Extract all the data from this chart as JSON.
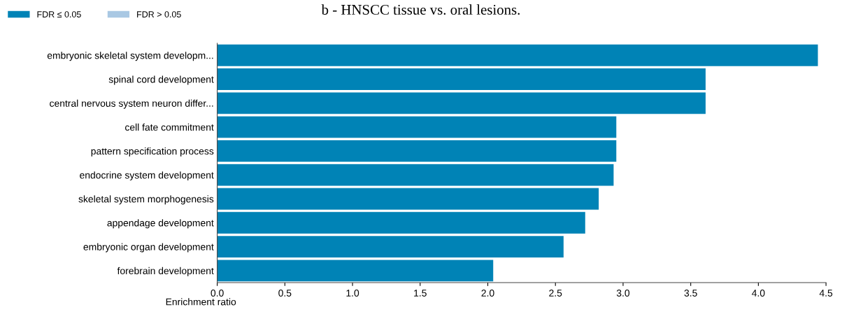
{
  "chart_data": {
    "type": "bar",
    "orientation": "horizontal",
    "title": "b - HNSCC tissue vs. oral lesions.",
    "xlabel": "Enrichment ratio",
    "categories": [
      "embryonic skeletal system developm...",
      "spinal cord development",
      "central nervous system neuron differ...",
      "cell fate commitment",
      "pattern specification process",
      "endocrine system development",
      "skeletal system morphogenesis",
      "appendage development",
      "embryonic organ development",
      "forebrain development"
    ],
    "series": [
      {
        "name": "FDR ≤ 0.05",
        "color": "#0083b6",
        "values": [
          4.44,
          3.61,
          3.61,
          2.95,
          2.95,
          2.93,
          2.82,
          2.72,
          2.56,
          2.04
        ]
      },
      {
        "name": "FDR > 0.05",
        "color": "#a9c8e3",
        "values": [
          null,
          null,
          null,
          null,
          null,
          null,
          null,
          null,
          null,
          null
        ]
      }
    ],
    "xlim": [
      0,
      4.5
    ],
    "xticks": [
      {
        "value": 0,
        "label": "0.0"
      },
      0.5,
      {
        "value": 1,
        "label": "1.0"
      },
      1.5,
      {
        "value": 2,
        "label": "2.0"
      },
      2.5,
      {
        "value": 3,
        "label": "3.0"
      },
      3.5,
      {
        "value": 4,
        "label": "4.0"
      },
      4.5
    ],
    "grid": false,
    "legend": "top left"
  }
}
